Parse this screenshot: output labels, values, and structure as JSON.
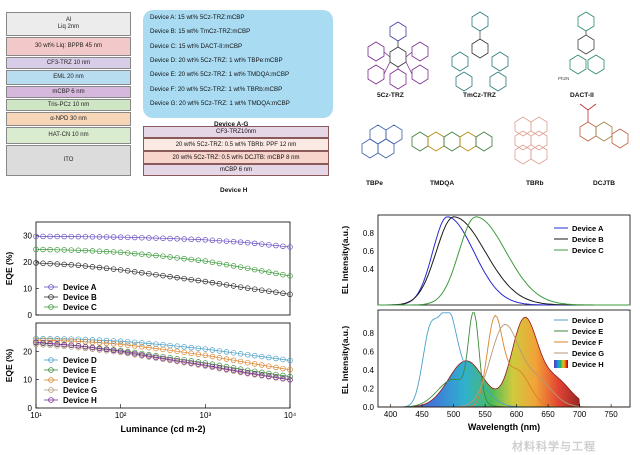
{
  "stack": {
    "layers": [
      {
        "text": "Al\nLiq 2nm",
        "color": "#ececec"
      },
      {
        "text": "30 wt% Liq: BPPB 45 nm",
        "color": "#f3c8c8"
      },
      {
        "text": "CF3-TRZ 10 nm",
        "color": "#d8cde8"
      },
      {
        "text": "EML  20 nm",
        "color": "#b9ddf0"
      },
      {
        "text": "mCBP 6 nm",
        "color": "#d6b8dd"
      },
      {
        "text": "Tris-PCz 10 nm",
        "color": "#cfe6c5"
      },
      {
        "text": "α-NPD 30 nm",
        "color": "#f7d6b8"
      },
      {
        "text": "HAT-CN 10 nm",
        "color": "#d9eccf"
      },
      {
        "text": "ITO",
        "color": "#dcdcdc"
      }
    ]
  },
  "devices_ag": {
    "lines": [
      "Device A: 15 wt% 5Cz-TRZ:mCBP",
      "Device B: 15 wt% TmCz-TRZ:mCBP",
      "Device C: 15 wt% DACT-II:mCBP",
      "Device D: 20 wt% 5Cz-TRZ:  1 wt% TBPe:mCBP",
      "Device E: 20 wt% 5Cz-TRZ:  1 wt% TMDQA:mCBP",
      "Device F: 20 wt% 5Cz-TRZ:  1 wt% TBRb:mCBP",
      "Device G: 20 wt% 5Cz-TRZ:  1 wt% TMDQA:mCBP"
    ],
    "caption": "Device A-G"
  },
  "device_h": {
    "layers": [
      {
        "text": "CF3-TRZ10nm",
        "color": "#e6d7e6"
      },
      {
        "text": "20 wt% 5Cz-TRZ: 0.5 wt% TBRb: PPF 12 nm",
        "color": "#fbe9e4"
      },
      {
        "text": "20 wt% 5Cz-TRZ: 0.5 wt% DCJTB: mCBP 8 nm",
        "color": "#f7d4cc"
      },
      {
        "text": "mCBP 6 nm",
        "color": "#e6d7e6"
      }
    ],
    "caption": "Device H"
  },
  "molecules": {
    "labels": [
      "5Cz-TRZ",
      "TmCz-TRZ",
      "DACT-II",
      "TBPe",
      "TMDQA",
      "TBRb",
      "DCJTB"
    ],
    "dact_sub": "Ph2N"
  },
  "chart_data": [
    {
      "type": "scatter",
      "title": "EQE vs luminance (Devices A-C)",
      "xlabel": "",
      "ylabel": "EQE (%)",
      "xscale": "log",
      "xlim": [
        10,
        10000
      ],
      "ylim": [
        0,
        35
      ],
      "yticks": [
        0,
        10,
        20,
        30
      ],
      "legend": "bottom-left",
      "series": [
        {
          "name": "Device A",
          "color": "#6a4fc2",
          "x": [
            10,
            30,
            100,
            300,
            1000,
            3000,
            10000
          ],
          "y": [
            29.6,
            29.5,
            29.3,
            28.9,
            28.3,
            27.3,
            25.6
          ]
        },
        {
          "name": "Device B",
          "color": "#2c2c2c",
          "x": [
            10,
            30,
            100,
            300,
            1000,
            3000,
            10000
          ],
          "y": [
            19.6,
            18.8,
            17.0,
            14.9,
            12.6,
            10.2,
            7.8
          ]
        },
        {
          "name": "Device C",
          "color": "#3d9b3d",
          "x": [
            10,
            30,
            100,
            300,
            1000,
            3000,
            10000
          ],
          "y": [
            24.7,
            24.4,
            23.6,
            22.2,
            20.3,
            17.7,
            14.7
          ]
        }
      ]
    },
    {
      "type": "scatter",
      "title": "EQE vs luminance (Devices D-H)",
      "xlabel": "Luminance (cd m-2)",
      "ylabel": "EQE (%)",
      "xscale": "log",
      "xlim": [
        10,
        10000
      ],
      "ylim": [
        0,
        30
      ],
      "yticks": [
        0,
        10,
        20
      ],
      "xticks": [
        "10¹",
        "10²",
        "10³",
        "10⁴"
      ],
      "legend": "bottom-left",
      "series": [
        {
          "name": "Device D",
          "color": "#4aa0c8",
          "x": [
            10,
            30,
            100,
            300,
            1000,
            3000,
            10000
          ],
          "y": [
            24.5,
            24.3,
            23.6,
            22.4,
            20.8,
            18.9,
            16.8
          ]
        },
        {
          "name": "Device E",
          "color": "#3b8a3b",
          "x": [
            10,
            30,
            100,
            300,
            1000,
            3000,
            10000
          ],
          "y": [
            23.0,
            22.0,
            20.3,
            18.2,
            15.9,
            13.4,
            11.1
          ]
        },
        {
          "name": "Device F",
          "color": "#d9832a",
          "x": [
            10,
            30,
            100,
            300,
            1000,
            3000,
            10000
          ],
          "y": [
            24.0,
            23.6,
            22.5,
            20.8,
            18.6,
            16.1,
            13.5
          ]
        },
        {
          "name": "Device G",
          "color": "#b39a7a",
          "x": [
            10,
            30,
            100,
            300,
            1000,
            3000,
            10000
          ],
          "y": [
            22.5,
            21.4,
            19.6,
            17.3,
            14.8,
            12.2,
            9.9
          ]
        },
        {
          "name": "Device H",
          "color": "#7a2a9a",
          "x": [
            10,
            30,
            100,
            300,
            1000,
            3000,
            10000
          ],
          "y": [
            23.2,
            22.0,
            20.0,
            17.6,
            15.1,
            12.5,
            10.0
          ]
        }
      ]
    },
    {
      "type": "line",
      "title": "EL spectra (Devices A-C)",
      "xlabel": "",
      "ylabel": "EL Intensity(a.u.)",
      "xlim": [
        380,
        780
      ],
      "ylim": [
        0,
        1.0
      ],
      "yticks": [
        0.4,
        0.6,
        0.8
      ],
      "legend": "top-right",
      "series": [
        {
          "name": "Device A",
          "color": "#2a2ad0",
          "peak": 490,
          "width": 42
        },
        {
          "name": "Device B",
          "color": "#1a1a1a",
          "peak": 500,
          "width": 50
        },
        {
          "name": "Device C",
          "color": "#3d9b3d",
          "peak": 535,
          "width": 48
        }
      ]
    },
    {
      "type": "line",
      "title": "EL spectra (Devices D-H)",
      "xlabel": "Wavelength (nm)",
      "ylabel": "EL Intensity(a.u.)",
      "xlim": [
        380,
        780
      ],
      "ylim": [
        0,
        1.05
      ],
      "yticks": [
        0.0,
        0.2,
        0.4,
        0.6,
        0.8
      ],
      "xticks": [
        400,
        450,
        500,
        550,
        600,
        650,
        700,
        750
      ],
      "legend": "top-right",
      "series": [
        {
          "name": "Device D",
          "color": "#4aa0c8",
          "peaks": [
            [
              462,
              0.75,
              12
            ],
            [
              490,
              0.9,
              14
            ],
            [
              525,
              0.35,
              25
            ]
          ]
        },
        {
          "name": "Device E",
          "color": "#3b8a3b",
          "peaks": [
            [
              532,
              0.92,
              8
            ],
            [
              500,
              0.3,
              25
            ]
          ]
        },
        {
          "name": "Device F",
          "color": "#d9832a",
          "peaks": [
            [
              565,
              0.9,
              12
            ],
            [
              600,
              0.4,
              20
            ]
          ]
        },
        {
          "name": "Device G",
          "color": "#b39a7a",
          "peaks": [
            [
              580,
              0.85,
              22
            ],
            [
              630,
              0.3,
              25
            ]
          ]
        },
        {
          "name": "Device H",
          "color": "#cc2222",
          "peaks": [
            [
              612,
              0.92,
              20
            ],
            [
              520,
              0.5,
              28
            ],
            [
              660,
              0.3,
              25
            ]
          ]
        }
      ]
    }
  ],
  "watermark": "材料科学与工程"
}
